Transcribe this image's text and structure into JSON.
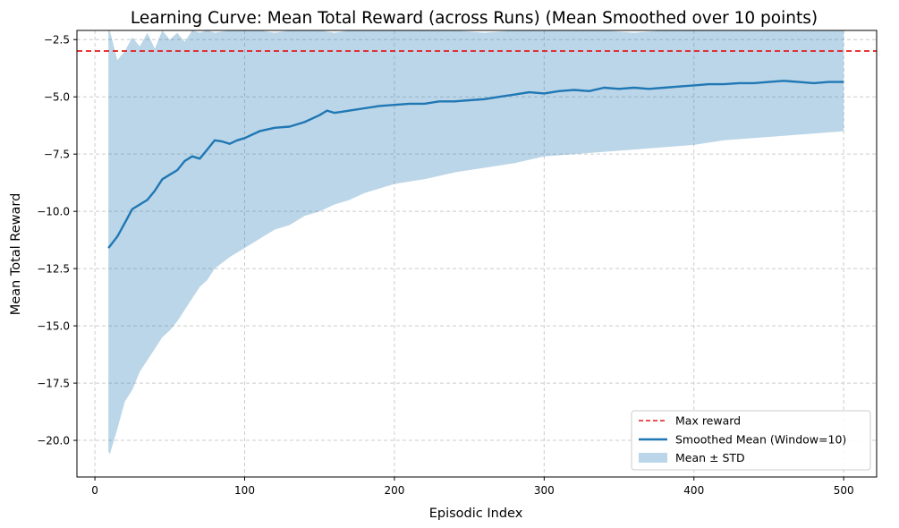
{
  "chart_data": {
    "type": "line",
    "title": "Learning Curve: Mean Total Reward (across Runs) (Mean Smoothed over 10 points)",
    "xlabel": "Episodic Index",
    "ylabel": "Mean Total Reward",
    "xlim": [
      -12,
      522
    ],
    "ylim": [
      -21.6,
      -2.1
    ],
    "x_ticks": [
      0,
      100,
      200,
      300,
      400,
      500
    ],
    "x_tick_labels": [
      "0",
      "100",
      "200",
      "300",
      "400",
      "500"
    ],
    "y_ticks": [
      -2.5,
      -5.0,
      -7.5,
      -10.0,
      -12.5,
      -15.0,
      -17.5,
      -20.0
    ],
    "y_tick_labels": [
      "−2.5",
      "−5.0",
      "−7.5",
      "−10.0",
      "−12.5",
      "−15.0",
      "−17.5",
      "−20.0"
    ],
    "grid": true,
    "legend_position": "bottom-right",
    "max_reward": {
      "name": "Max reward",
      "value": -3.0,
      "color": "#e41a1c"
    },
    "series": [
      {
        "name": "Smoothed Mean (Window=10)",
        "color": "#1f77b4",
        "x": [
          9,
          15,
          20,
          25,
          30,
          35,
          40,
          45,
          50,
          55,
          60,
          65,
          70,
          75,
          80,
          85,
          90,
          95,
          100,
          110,
          120,
          130,
          140,
          150,
          155,
          160,
          170,
          180,
          190,
          200,
          210,
          220,
          230,
          240,
          250,
          260,
          270,
          280,
          290,
          300,
          310,
          320,
          330,
          340,
          350,
          360,
          370,
          380,
          390,
          400,
          410,
          420,
          430,
          440,
          450,
          460,
          470,
          480,
          490,
          500
        ],
        "values": [
          -11.6,
          -11.1,
          -10.5,
          -9.9,
          -9.7,
          -9.5,
          -9.1,
          -8.6,
          -8.4,
          -8.2,
          -7.8,
          -7.6,
          -7.7,
          -7.3,
          -6.9,
          -6.95,
          -7.05,
          -6.9,
          -6.8,
          -6.5,
          -6.35,
          -6.3,
          -6.1,
          -5.8,
          -5.6,
          -5.7,
          -5.6,
          -5.5,
          -5.4,
          -5.35,
          -5.3,
          -5.3,
          -5.2,
          -5.2,
          -5.15,
          -5.1,
          -5.0,
          -4.9,
          -4.8,
          -4.85,
          -4.75,
          -4.7,
          -4.75,
          -4.6,
          -4.65,
          -4.6,
          -4.65,
          -4.6,
          -4.55,
          -4.5,
          -4.45,
          -4.45,
          -4.4,
          -4.4,
          -4.35,
          -4.3,
          -4.35,
          -4.4,
          -4.35,
          -4.35
        ]
      }
    ],
    "band": {
      "name": "Mean ± STD",
      "color": "#1f77b4",
      "opacity": 0.3,
      "x": [
        9,
        10,
        15,
        20,
        25,
        30,
        35,
        40,
        45,
        50,
        55,
        60,
        65,
        70,
        75,
        80,
        90,
        100,
        110,
        120,
        130,
        140,
        150,
        160,
        170,
        180,
        190,
        200,
        220,
        240,
        260,
        280,
        300,
        320,
        340,
        360,
        380,
        400,
        420,
        440,
        460,
        480,
        500
      ],
      "upper": [
        -2.1,
        -2.1,
        -3.4,
        -3.0,
        -2.4,
        -2.8,
        -2.2,
        -2.9,
        -2.1,
        -2.5,
        -2.2,
        -2.6,
        -2.1,
        -2.2,
        -2.1,
        -2.2,
        -2.1,
        -2.1,
        -2.1,
        -2.2,
        -2.1,
        -2.1,
        -2.1,
        -2.2,
        -2.1,
        -2.1,
        -2.1,
        -2.1,
        -2.1,
        -2.1,
        -2.2,
        -2.1,
        -2.1,
        -2.1,
        -2.1,
        -2.2,
        -2.1,
        -2.1,
        -2.1,
        -2.1,
        -2.1,
        -2.1,
        -2.1
      ],
      "lower": [
        -20.5,
        -20.6,
        -19.5,
        -18.3,
        -17.8,
        -17.0,
        -16.5,
        -16.0,
        -15.5,
        -15.2,
        -14.8,
        -14.3,
        -13.8,
        -13.3,
        -13.0,
        -12.5,
        -12.0,
        -11.6,
        -11.2,
        -10.8,
        -10.6,
        -10.2,
        -10.0,
        -9.7,
        -9.5,
        -9.2,
        -9.0,
        -8.8,
        -8.6,
        -8.3,
        -8.1,
        -7.9,
        -7.6,
        -7.5,
        -7.4,
        -7.3,
        -7.2,
        -7.1,
        -6.9,
        -6.8,
        -6.7,
        -6.6,
        -6.5
      ]
    }
  }
}
